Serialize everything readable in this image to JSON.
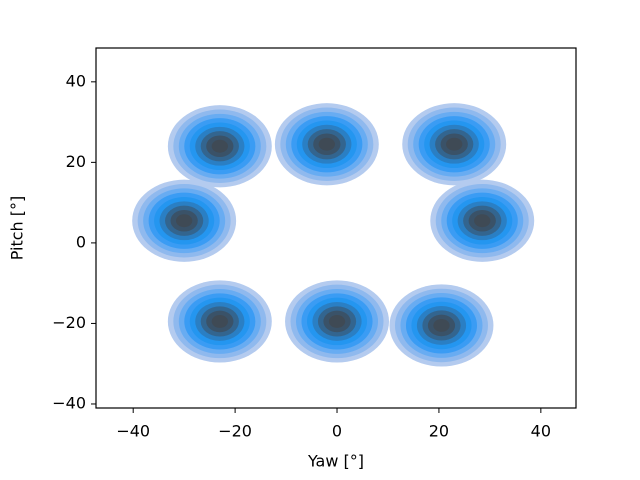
{
  "chart_data": {
    "type": "kde",
    "x": [
      -23,
      -2,
      23,
      -30,
      28.5,
      -23,
      0,
      20.5
    ],
    "y": [
      24,
      24.5,
      24.5,
      5.5,
      5.5,
      -19.5,
      -19.5,
      -20.5
    ],
    "colors": [
      "#b4cbef",
      "#8fb9ee",
      "#68acf2",
      "#3a9cf4",
      "#2496f0",
      "#2a7fc4",
      "#33658f",
      "#3a5268",
      "#3f4a55"
    ],
    "xlabel": "Yaw [°]",
    "ylabel": "Pitch [°]",
    "xlim": [
      -47.3,
      46.9
    ],
    "ylim": [
      -41,
      48.4
    ],
    "xticks": [
      {
        "value": -40,
        "label": "−40"
      },
      {
        "value": -20,
        "label": "−20"
      },
      0,
      20,
      40
    ],
    "yticks": [
      {
        "value": -40,
        "label": "−40"
      },
      {
        "value": -20,
        "label": "−20"
      },
      0,
      20,
      40
    ],
    "grid": false
  }
}
